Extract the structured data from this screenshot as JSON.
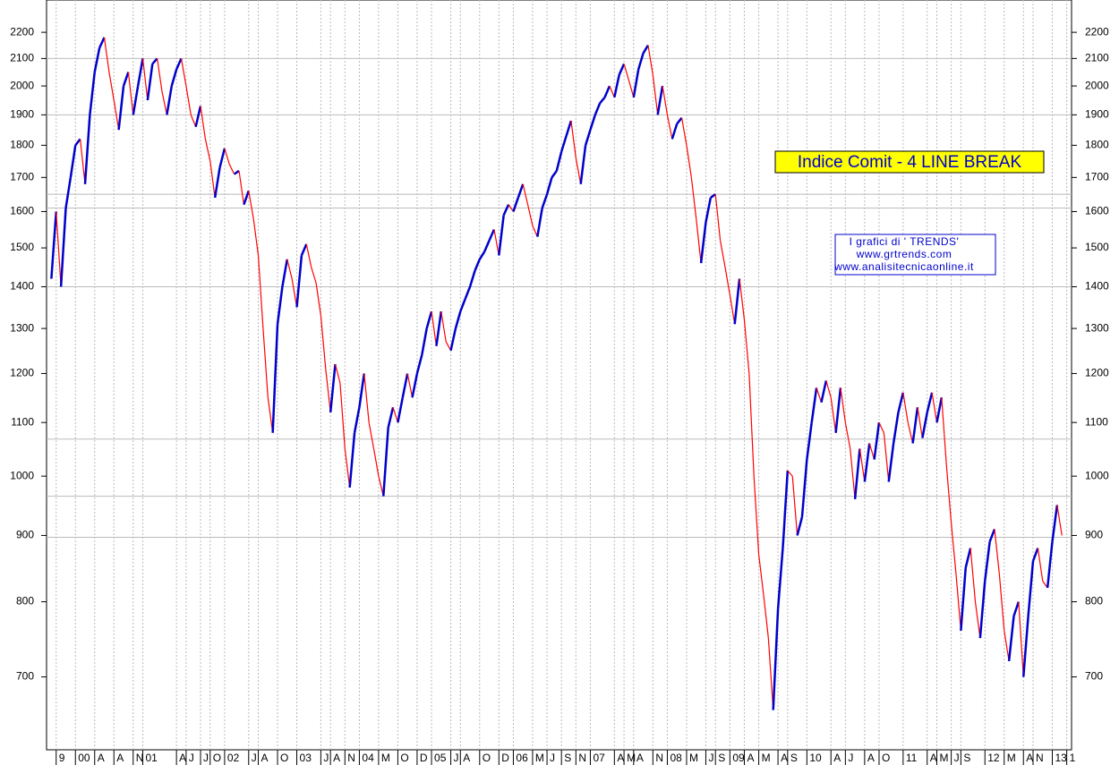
{
  "chart_data": {
    "type": "line",
    "title": "Indice Comit - 4  LINE BREAK",
    "info": [
      "I grafici di ' TRENDS'",
      "www.grtrends.com",
      "www.analisitecnicaonline.it"
    ],
    "log_scale": true,
    "up_color": "#0000cc",
    "down_color": "#ff0000",
    "levels": [
      2100,
      1900,
      1650,
      1610,
      1400,
      1068,
      965,
      897
    ],
    "x": [
      0,
      1,
      2,
      3,
      4,
      5,
      6,
      7,
      8,
      9,
      10,
      11,
      12,
      13,
      14,
      15,
      16,
      17,
      18,
      19,
      20,
      21,
      22,
      23,
      24,
      25,
      26,
      27,
      28,
      29,
      30,
      31,
      32,
      33,
      34,
      35,
      36,
      37,
      38,
      39,
      40,
      41,
      42,
      43,
      44,
      45,
      46,
      47,
      48,
      49,
      50,
      51,
      52,
      53,
      54,
      55,
      56,
      57,
      58,
      59,
      60,
      61,
      62,
      63,
      64,
      65,
      66,
      67,
      68,
      69,
      70,
      71,
      72,
      73,
      74,
      75,
      76,
      77,
      78,
      79,
      80,
      81,
      82,
      83,
      84,
      85,
      86,
      87,
      88,
      89,
      90,
      91,
      92,
      93,
      94,
      95,
      96,
      97,
      98,
      99,
      100,
      101,
      102,
      103,
      104,
      105,
      106,
      107,
      108,
      109,
      110,
      111,
      112,
      113,
      114,
      115,
      116,
      117,
      118,
      119,
      120,
      121,
      122,
      123,
      124,
      125,
      126,
      127,
      128,
      129,
      130,
      131,
      132,
      133,
      134,
      135,
      136,
      137,
      138,
      139,
      140,
      141,
      142,
      143,
      144,
      145,
      146,
      147,
      148,
      149,
      150,
      151,
      152,
      153,
      154,
      155,
      156,
      157,
      158,
      159,
      160,
      161,
      162,
      163,
      164,
      165,
      166,
      167,
      168,
      169,
      170,
      171,
      172,
      173,
      174,
      175,
      176,
      177,
      178,
      179,
      180,
      181,
      182,
      183,
      184,
      185,
      186,
      187,
      188,
      189,
      190,
      191,
      192,
      193,
      194,
      195,
      196,
      197,
      198,
      199,
      200,
      201,
      202,
      203,
      204,
      205,
      206,
      207,
      208,
      209,
      210
    ],
    "values": [
      1420,
      1600,
      1400,
      1610,
      1700,
      1800,
      1820,
      1680,
      1900,
      2050,
      2140,
      2180,
      2050,
      1950,
      1850,
      2000,
      2050,
      1900,
      2000,
      2100,
      1950,
      2080,
      2100,
      1980,
      1900,
      2000,
      2060,
      2100,
      2000,
      1900,
      1860,
      1930,
      1820,
      1750,
      1640,
      1730,
      1790,
      1740,
      1710,
      1720,
      1620,
      1660,
      1580,
      1480,
      1300,
      1150,
      1080,
      1310,
      1400,
      1470,
      1420,
      1350,
      1480,
      1510,
      1450,
      1410,
      1330,
      1210,
      1120,
      1220,
      1180,
      1050,
      980,
      1080,
      1130,
      1200,
      1100,
      1050,
      1000,
      965,
      1090,
      1130,
      1100,
      1150,
      1200,
      1150,
      1200,
      1240,
      1300,
      1340,
      1260,
      1340,
      1270,
      1250,
      1300,
      1340,
      1370,
      1400,
      1440,
      1470,
      1490,
      1520,
      1550,
      1480,
      1590,
      1620,
      1600,
      1640,
      1680,
      1620,
      1560,
      1530,
      1610,
      1650,
      1700,
      1720,
      1780,
      1830,
      1880,
      1760,
      1680,
      1800,
      1850,
      1900,
      1940,
      1960,
      2000,
      1960,
      2040,
      2080,
      2020,
      1960,
      2060,
      2120,
      2150,
      2040,
      1900,
      2000,
      1900,
      1820,
      1870,
      1890,
      1800,
      1700,
      1580,
      1460,
      1570,
      1640,
      1650,
      1520,
      1450,
      1380,
      1310,
      1420,
      1320,
      1200,
      1000,
      870,
      810,
      750,
      660,
      790,
      880,
      1010,
      1000,
      900,
      930,
      1030,
      1100,
      1170,
      1140,
      1185,
      1150,
      1080,
      1170,
      1100,
      1050,
      960,
      1050,
      990,
      1060,
      1030,
      1100,
      1080,
      990,
      1060,
      1120,
      1160,
      1100,
      1060,
      1130,
      1070,
      1120,
      1160,
      1100,
      1150,
      1020,
      920,
      840,
      760,
      850,
      880,
      800,
      750,
      830,
      890,
      910,
      840,
      760,
      720,
      780,
      800,
      700,
      780,
      860,
      880,
      830,
      820,
      890,
      950,
      900
    ],
    "xlim": [
      -1,
      212
    ],
    "xticks": [
      {
        "value": 1,
        "label": "9"
      },
      {
        "value": 5,
        "label": "00"
      },
      {
        "value": 9,
        "label": "A"
      },
      {
        "value": 13,
        "label": "A"
      },
      {
        "value": 17,
        "label": "N"
      },
      {
        "value": 19,
        "label": "01"
      },
      {
        "value": 26,
        "label": "A"
      },
      {
        "value": 28,
        "label": "J"
      },
      {
        "value": 31,
        "label": "J"
      },
      {
        "value": 33,
        "label": "O"
      },
      {
        "value": 36,
        "label": "02"
      },
      {
        "value": 41,
        "label": "J"
      },
      {
        "value": 43,
        "label": "A"
      },
      {
        "value": 47,
        "label": "O"
      },
      {
        "value": 51,
        "label": "03"
      },
      {
        "value": 56,
        "label": "J"
      },
      {
        "value": 58,
        "label": "A"
      },
      {
        "value": 61,
        "label": "N"
      },
      {
        "value": 64,
        "label": "04"
      },
      {
        "value": 68,
        "label": "M"
      },
      {
        "value": 72,
        "label": "O"
      },
      {
        "value": 76,
        "label": "D"
      },
      {
        "value": 79,
        "label": "05"
      },
      {
        "value": 83,
        "label": "J"
      },
      {
        "value": 85,
        "label": "A"
      },
      {
        "value": 89,
        "label": "O"
      },
      {
        "value": 93,
        "label": "D"
      },
      {
        "value": 96,
        "label": "06"
      },
      {
        "value": 100,
        "label": "M"
      },
      {
        "value": 103,
        "label": "J"
      },
      {
        "value": 106,
        "label": "S"
      },
      {
        "value": 109,
        "label": "N"
      },
      {
        "value": 112,
        "label": "07"
      },
      {
        "value": 117,
        "label": "A"
      },
      {
        "value": 119,
        "label": "M"
      },
      {
        "value": 121,
        "label": "A"
      },
      {
        "value": 125,
        "label": "N"
      },
      {
        "value": 128,
        "label": "08"
      },
      {
        "value": 132,
        "label": "M"
      },
      {
        "value": 136,
        "label": "J"
      },
      {
        "value": 138,
        "label": "S"
      },
      {
        "value": 141,
        "label": "09"
      },
      {
        "value": 144,
        "label": "A"
      },
      {
        "value": 147,
        "label": "M"
      },
      {
        "value": 151,
        "label": "A"
      },
      {
        "value": 153,
        "label": "S"
      },
      {
        "value": 157,
        "label": "10"
      },
      {
        "value": 162,
        "label": "A"
      },
      {
        "value": 165,
        "label": "J"
      },
      {
        "value": 169,
        "label": "A"
      },
      {
        "value": 172,
        "label": "O"
      },
      {
        "value": 177,
        "label": "11"
      },
      {
        "value": 182,
        "label": "A"
      },
      {
        "value": 184,
        "label": "M"
      },
      {
        "value": 187,
        "label": "J"
      },
      {
        "value": 189,
        "label": "S"
      },
      {
        "value": 194,
        "label": "12"
      },
      {
        "value": 198,
        "label": "M"
      },
      {
        "value": 202,
        "label": "A"
      },
      {
        "value": 204,
        "label": "N"
      },
      {
        "value": 208,
        "label": "13"
      },
      {
        "value": 211,
        "label": "1"
      }
    ],
    "ylim": [
      615,
      2330
    ],
    "yticks": [
      700,
      800,
      900,
      1000,
      1100,
      1200,
      1300,
      1400,
      1500,
      1600,
      1700,
      1800,
      1900,
      2000,
      2100,
      2200
    ]
  }
}
